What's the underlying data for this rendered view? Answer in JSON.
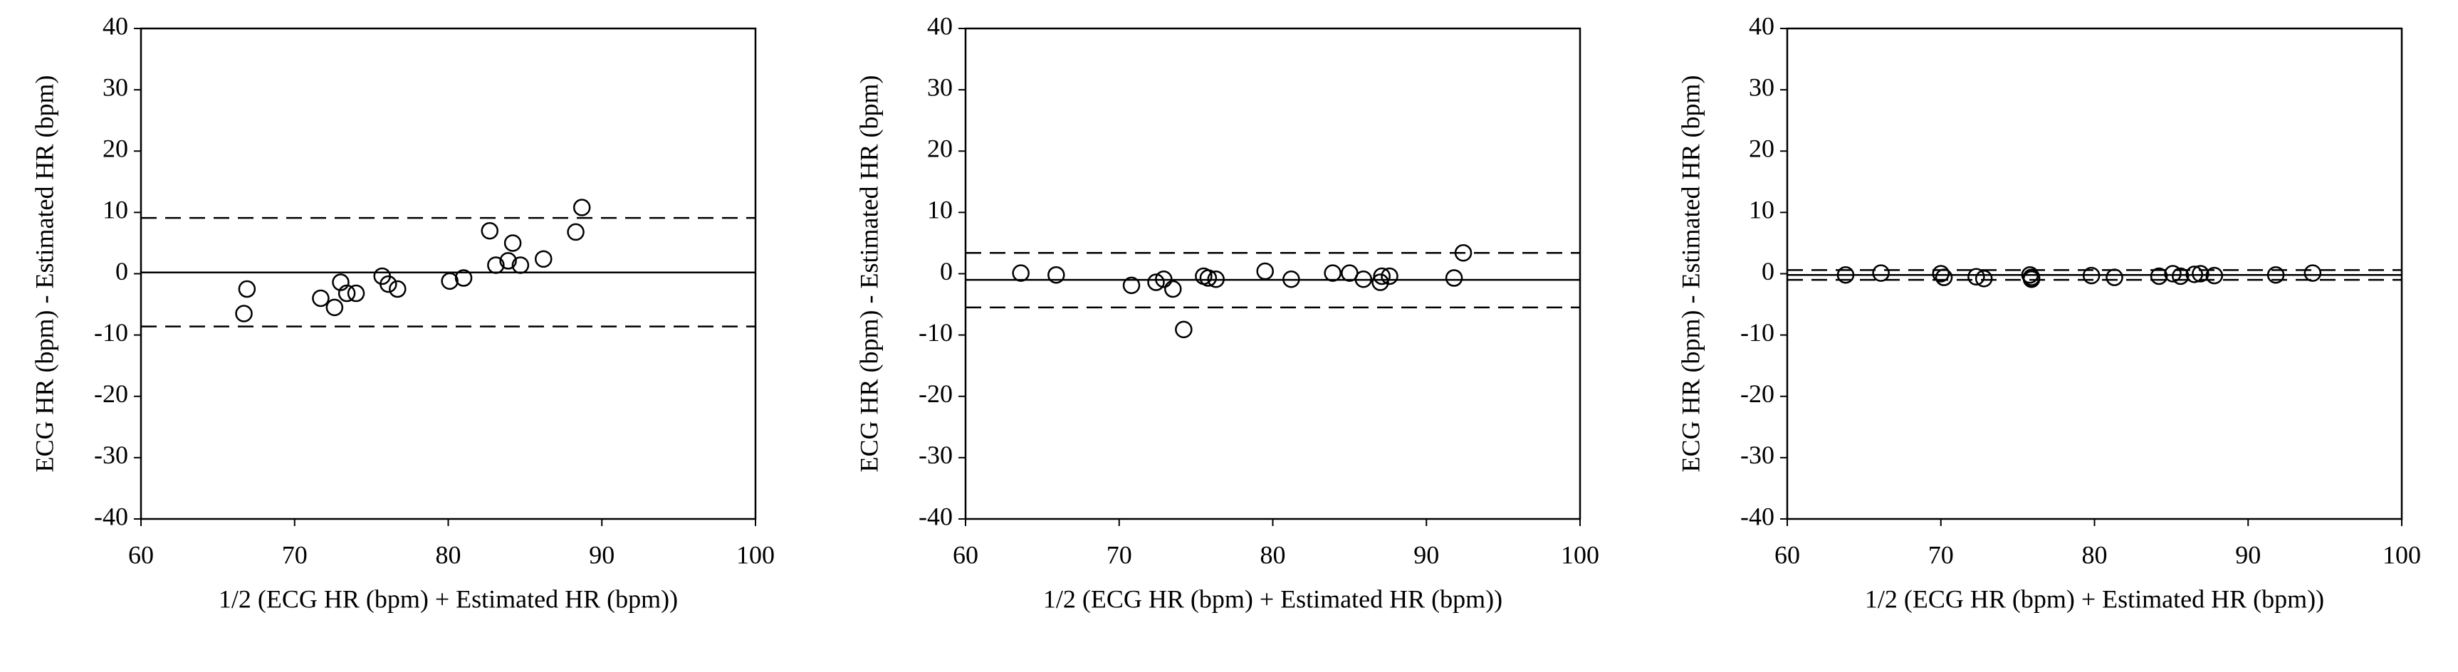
{
  "chart_data": [
    {
      "type": "scatter",
      "xlabel": "1/2 (ECG HR (bpm) + Estimated HR (bpm))",
      "ylabel": "ECG HR (bpm) - Estimated HR (bpm)",
      "xlim": [
        60,
        100
      ],
      "ylim": [
        -40,
        40
      ],
      "xticks": [
        60,
        70,
        80,
        90,
        100
      ],
      "yticks": [
        -40,
        -30,
        -20,
        -10,
        0,
        10,
        20,
        30,
        40
      ],
      "color": "#000000",
      "x": [
        66.9,
        66.7,
        71.7,
        72.6,
        73.0,
        73.4,
        74.0,
        75.7,
        76.1,
        76.7,
        80.1,
        81.0,
        82.7,
        83.1,
        83.9,
        84.2,
        84.7,
        86.2,
        88.3,
        88.7
      ],
      "values": [
        -2.5,
        -6.5,
        -4.0,
        -5.5,
        -1.4,
        -3.2,
        -3.2,
        -0.4,
        -1.7,
        -2.5,
        -1.2,
        -0.7,
        7.0,
        1.4,
        2.1,
        5.0,
        1.4,
        2.4,
        6.8,
        10.8
      ],
      "mean": 0.2,
      "upper_limit": 9.1,
      "lower_limit": -8.6
    },
    {
      "type": "scatter",
      "xlabel": "1/2 (ECG HR (bpm) + Estimated HR (bpm))",
      "ylabel": "ECG HR (bpm) - Estimated HR (bpm)",
      "xlim": [
        60,
        100
      ],
      "ylim": [
        -40,
        40
      ],
      "xticks": [
        60,
        70,
        80,
        90,
        100
      ],
      "yticks": [
        -40,
        -30,
        -20,
        -10,
        0,
        10,
        20,
        30,
        40
      ],
      "color": "#000000",
      "x": [
        63.6,
        65.9,
        70.8,
        72.4,
        72.9,
        73.5,
        74.2,
        75.5,
        75.8,
        76.3,
        79.5,
        81.2,
        83.9,
        85.0,
        85.9,
        87.0,
        87.1,
        87.6,
        91.8,
        92.4
      ],
      "values": [
        0.1,
        -0.2,
        -1.9,
        -1.4,
        -0.9,
        -2.5,
        -9.1,
        -0.4,
        -0.7,
        -0.9,
        0.4,
        -0.9,
        0.1,
        0.1,
        -0.9,
        -1.4,
        -0.4,
        -0.4,
        -0.7,
        3.4
      ],
      "mean": -1.0,
      "upper_limit": 3.4,
      "lower_limit": -5.5
    },
    {
      "type": "scatter",
      "xlabel": "1/2 (ECG HR (bpm) + Estimated HR (bpm))",
      "ylabel": "ECG HR (bpm) - Estimated HR (bpm)",
      "xlim": [
        60,
        100
      ],
      "ylim": [
        -40,
        40
      ],
      "xticks": [
        60,
        70,
        80,
        90,
        100
      ],
      "yticks": [
        -40,
        -30,
        -20,
        -10,
        0,
        10,
        20,
        30,
        40
      ],
      "color": "#000000",
      "x": [
        63.8,
        66.1,
        70.0,
        70.2,
        72.3,
        72.8,
        75.8,
        75.9,
        75.9,
        79.8,
        81.3,
        84.2,
        85.1,
        85.6,
        86.5,
        86.9,
        87.8,
        91.8,
        94.2
      ],
      "values": [
        -0.2,
        0.1,
        0.0,
        -0.6,
        -0.5,
        -0.8,
        -0.2,
        -0.6,
        -0.9,
        -0.3,
        -0.6,
        -0.4,
        0.0,
        -0.4,
        -0.1,
        0.0,
        -0.3,
        -0.2,
        0.1
      ],
      "mean": -0.2,
      "upper_limit": 0.6,
      "lower_limit": -1.0
    }
  ]
}
